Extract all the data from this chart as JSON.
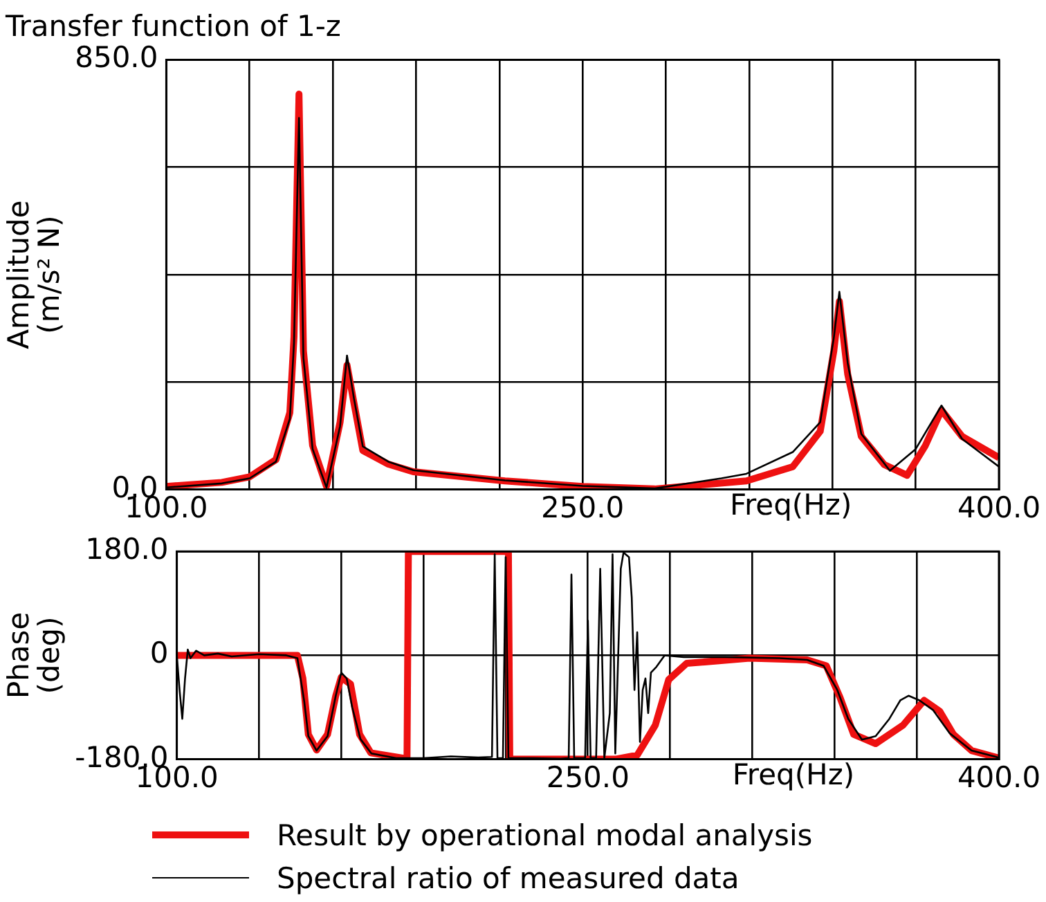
{
  "chart_data": [
    {
      "type": "line",
      "title": "Transfer function of 1-z",
      "xlabel": "Freq(Hz)",
      "ylabel": "Amplitude (m/s² N)",
      "xlim": [
        100,
        400
      ],
      "ylim": [
        0,
        850
      ],
      "xticks": [
        {
          "value": 100,
          "label": "100.0"
        },
        {
          "value": 130,
          "label": null
        },
        {
          "value": 160,
          "label": null
        },
        {
          "value": 190,
          "label": null
        },
        {
          "value": 220,
          "label": null
        },
        {
          "value": 250,
          "label": "250.0"
        },
        {
          "value": 280,
          "label": null
        },
        {
          "value": 310,
          "label": null
        },
        {
          "value": 340,
          "label": null
        },
        {
          "value": 370,
          "label": null
        },
        {
          "value": 400,
          "label": "400.0"
        }
      ],
      "yticks": [
        {
          "value": 0,
          "label": "0.0"
        },
        {
          "value": 212.5,
          "label": null
        },
        {
          "value": 425,
          "label": null
        },
        {
          "value": 637.5,
          "label": null
        },
        {
          "value": 850,
          "label": "850.0"
        }
      ],
      "grid": true,
      "marker": "none",
      "series": [
        {
          "color": "#ee1111",
          "x": [
            100,
            120,
            130,
            139.5,
            144.5,
            146,
            147.8,
            149.4,
            152.7,
            157.7,
            162.6,
            165.1,
            167.6,
            170.8,
            180,
            189,
            222,
            250,
            276,
            309,
            325.7,
            335.6,
            340.5,
            342.5,
            345.5,
            350.4,
            358.7,
            366.9,
            373.5,
            379.3,
            386.7,
            400
          ],
          "values": [
            6,
            14,
            25,
            59,
            152,
            302,
            782,
            274,
            87,
            6,
            133,
            246,
            171,
            77,
            50,
            35,
            17,
            6,
            1,
            17,
            45,
            115,
            274,
            372,
            228,
            105,
            49,
            28,
            87,
            157,
            105,
            63
          ]
        },
        {
          "color": "#000000",
          "x": [
            100,
            120,
            130,
            139.5,
            144.5,
            146,
            147.8,
            149.4,
            152.7,
            157.7,
            162.6,
            165.1,
            167.6,
            170.8,
            180,
            189,
            222,
            250,
            276,
            300,
            309,
            325.7,
            335.6,
            340.5,
            342.5,
            345.5,
            350.4,
            360.7,
            370,
            379.3,
            386.7,
            400
          ],
          "values": [
            4,
            12,
            22,
            55,
            140,
            290,
            735,
            260,
            80,
            4,
            125,
            265,
            180,
            85,
            55,
            38,
            18,
            7,
            2,
            22,
            31,
            74,
            133,
            300,
            391,
            250,
            110,
            37,
            80,
            166,
            100,
            45
          ]
        }
      ]
    },
    {
      "type": "line",
      "xlabel": "Freq(Hz)",
      "ylabel": "Phase (deg)",
      "xlim": [
        100,
        400
      ],
      "ylim": [
        -180,
        180
      ],
      "xticks": [
        {
          "value": 100,
          "label": "100.0"
        },
        {
          "value": 130,
          "label": null
        },
        {
          "value": 160,
          "label": null
        },
        {
          "value": 190,
          "label": null
        },
        {
          "value": 220,
          "label": null
        },
        {
          "value": 250,
          "label": "250.0"
        },
        {
          "value": 280,
          "label": null
        },
        {
          "value": 310,
          "label": null
        },
        {
          "value": 340,
          "label": null
        },
        {
          "value": 370,
          "label": null
        },
        {
          "value": 400,
          "label": "400.0"
        }
      ],
      "yticks": [
        {
          "value": -180,
          "label": "-180.0"
        },
        0,
        {
          "value": 180,
          "label": "180.0"
        }
      ],
      "grid": true,
      "marker": "none",
      "legend": "bottom",
      "series": [
        {
          "name": "Result by operational modal analysis",
          "color": "#ee1111",
          "x": [
            100,
            144,
            146,
            148,
            151,
            155,
            158,
            160,
            163.4,
            166.7,
            170.8,
            182.4,
            184,
            184.5,
            221,
            221.5,
            260,
            268,
            274.6,
            279.5,
            286,
            309,
            330,
            337,
            342,
            347,
            355,
            365,
            372.7,
            378.4,
            383.4,
            390,
            400
          ],
          "values": [
            0,
            0,
            -40,
            -137,
            -164,
            -137,
            -70,
            -38,
            -50,
            -137,
            -169,
            -178,
            -180,
            180,
            180,
            -180,
            -180,
            -173,
            -121,
            -42,
            -14,
            -5,
            -8,
            -18,
            -73,
            -137,
            -153,
            -121,
            -78,
            -97,
            -137,
            -165,
            -178
          ]
        },
        {
          "name": "Spectral ratio of measured data",
          "color": "#000000",
          "x": [
            100,
            101,
            102,
            103,
            104,
            105,
            107,
            110,
            115,
            120,
            130,
            140,
            144,
            146.5,
            148,
            151,
            155,
            158,
            160,
            162,
            164,
            167,
            171,
            180,
            190,
            200,
            210,
            215,
            216,
            217,
            219,
            220,
            221,
            230,
            240,
            243,
            244,
            245,
            249,
            250,
            251,
            253,
            254.5,
            256,
            258,
            259,
            260,
            262,
            263,
            265,
            266,
            267,
            268,
            269,
            270,
            271,
            272,
            273,
            275,
            278,
            285,
            300,
            320,
            330,
            336,
            341,
            345,
            350,
            355,
            360,
            364,
            367,
            371,
            376,
            382,
            390,
            399,
            400
          ],
          "values": [
            0,
            -60,
            -110,
            -40,
            10,
            -5,
            8,
            0,
            3,
            -2,
            2,
            0,
            -5,
            -80,
            -140,
            -165,
            -140,
            -70,
            -30,
            -40,
            -90,
            -145,
            -170,
            -178,
            -178,
            -175,
            -177,
            -176,
            175,
            -178,
            -178,
            170,
            -178,
            -178,
            -179,
            -178,
            140,
            -178,
            -178,
            60,
            -178,
            -178,
            150,
            -178,
            -100,
            175,
            -170,
            150,
            178,
            170,
            100,
            -60,
            40,
            -150,
            -60,
            -40,
            -100,
            -30,
            -20,
            0,
            -3,
            -3,
            -5,
            -8,
            -18,
            -60,
            -110,
            -146,
            -140,
            -110,
            -78,
            -70,
            -78,
            -95,
            -135,
            -165,
            -176,
            -178
          ]
        }
      ]
    }
  ]
}
